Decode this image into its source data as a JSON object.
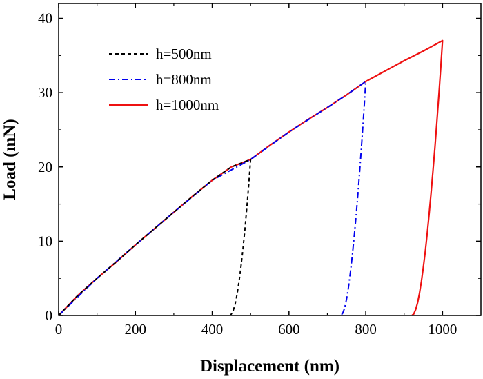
{
  "chart_data": {
    "type": "line",
    "xlabel": "Displacement (nm)",
    "ylabel": "Load (mN)",
    "xlim": [
      0,
      1100
    ],
    "ylim": [
      0,
      42
    ],
    "x_ticks": [
      0,
      200,
      400,
      600,
      800,
      1000
    ],
    "y_ticks": [
      0,
      10,
      20,
      30,
      40
    ],
    "x_tick_labels": [
      "0",
      "200",
      "400",
      "600",
      "800",
      "1000"
    ],
    "y_tick_labels": [
      "0",
      "10",
      "20",
      "30",
      "40"
    ],
    "legend_position": "top-left",
    "grid": false,
    "series": [
      {
        "name": "h=500nm",
        "style": "dashed",
        "color": "#000000",
        "x": [
          0,
          50,
          100,
          150,
          200,
          250,
          300,
          350,
          400,
          450,
          500,
          500,
          495,
          490,
          485,
          480,
          475,
          470,
          465,
          460,
          455,
          450,
          447
        ],
        "y": [
          0,
          2.7,
          5.0,
          7.2,
          9.5,
          11.7,
          13.9,
          16.1,
          18.2,
          20.0,
          21.0,
          21.0,
          17.5,
          14.4,
          11.5,
          8.9,
          6.6,
          4.6,
          2.9,
          1.6,
          0.7,
          0.2,
          0
        ]
      },
      {
        "name": "h=800nm",
        "style": "dash-dot",
        "color": "#0000ee",
        "x": [
          0,
          100,
          200,
          300,
          400,
          500,
          600,
          700,
          750,
          800,
          800,
          795,
          790,
          785,
          780,
          775,
          770,
          765,
          760,
          755,
          750,
          745,
          740,
          735
        ],
        "y": [
          0,
          5.0,
          9.5,
          13.9,
          18.2,
          21.0,
          24.7,
          28.0,
          29.7,
          31.5,
          31.5,
          27.4,
          23.6,
          20.0,
          16.6,
          13.5,
          10.7,
          8.1,
          5.8,
          3.8,
          2.2,
          1.0,
          0.3,
          0
        ]
      },
      {
        "name": "h=1000nm",
        "style": "solid",
        "color": "#ee1111",
        "x": [
          0,
          50,
          100,
          150,
          200,
          250,
          300,
          350,
          400,
          450,
          500,
          550,
          600,
          650,
          700,
          750,
          800,
          850,
          900,
          950,
          1000,
          1000,
          995,
          990,
          985,
          980,
          975,
          970,
          965,
          960,
          955,
          950,
          945,
          940,
          935,
          930,
          925,
          920
        ],
        "y": [
          0,
          2.7,
          5.0,
          7.2,
          9.5,
          11.7,
          13.9,
          16.1,
          18.2,
          20.0,
          21.0,
          22.9,
          24.7,
          26.4,
          28.0,
          29.7,
          31.5,
          32.9,
          34.3,
          35.6,
          37.0,
          37.0,
          33.1,
          29.4,
          25.9,
          22.5,
          19.4,
          16.4,
          13.6,
          11.0,
          8.6,
          6.5,
          4.6,
          3.0,
          1.7,
          0.8,
          0.2,
          0
        ]
      }
    ]
  }
}
